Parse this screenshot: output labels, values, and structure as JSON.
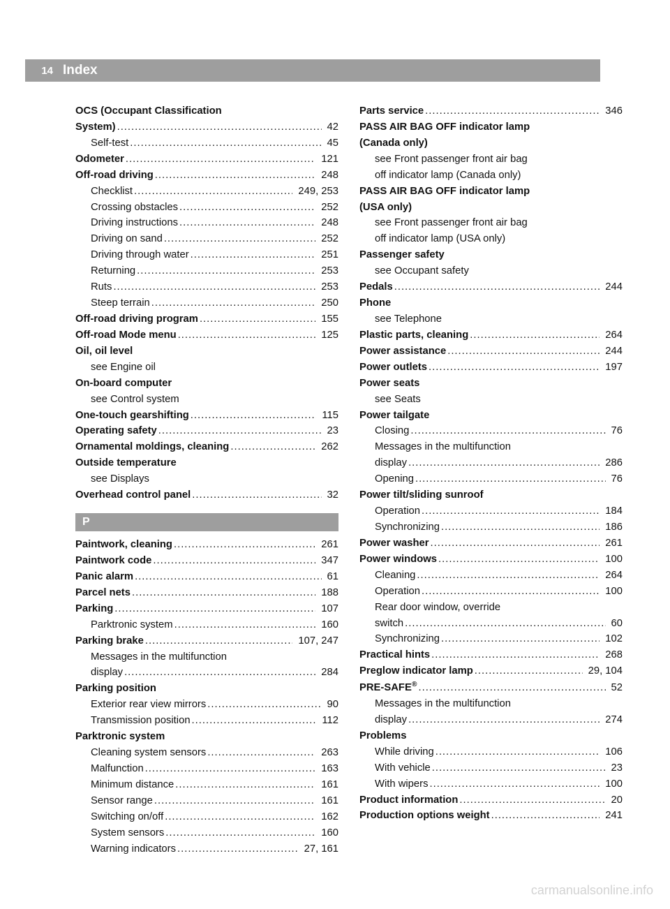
{
  "page_number": "14",
  "header_title": "Index",
  "watermark": "carmanualsonline.info",
  "section_letter": "P",
  "colors": {
    "header_bg": "#9e9e9e",
    "header_text": "#ffffff",
    "text": "#111111",
    "page_bg": "#ffffff",
    "watermark": "rgba(0,0,0,0.18)"
  },
  "left_col": [
    {
      "label": "OCS (Occupant Classification",
      "bold": true,
      "sub": false,
      "page": "",
      "noref": true
    },
    {
      "label": "System)",
      "bold": true,
      "sub": false,
      "page": "42"
    },
    {
      "label": "Self-test",
      "bold": false,
      "sub": true,
      "page": "45"
    },
    {
      "label": "Odometer",
      "bold": true,
      "sub": false,
      "page": "121"
    },
    {
      "label": "Off-road driving",
      "bold": true,
      "sub": false,
      "page": "248"
    },
    {
      "label": "Checklist",
      "bold": false,
      "sub": true,
      "page": "249, 253"
    },
    {
      "label": "Crossing obstacles",
      "bold": false,
      "sub": true,
      "page": "252"
    },
    {
      "label": "Driving instructions",
      "bold": false,
      "sub": true,
      "page": "248"
    },
    {
      "label": "Driving on sand",
      "bold": false,
      "sub": true,
      "page": "252"
    },
    {
      "label": "Driving through water",
      "bold": false,
      "sub": true,
      "page": "251"
    },
    {
      "label": "Returning",
      "bold": false,
      "sub": true,
      "page": "253"
    },
    {
      "label": "Ruts",
      "bold": false,
      "sub": true,
      "page": "253"
    },
    {
      "label": "Steep terrain",
      "bold": false,
      "sub": true,
      "page": "250"
    },
    {
      "label": "Off-road driving program",
      "bold": true,
      "sub": false,
      "page": "155"
    },
    {
      "label": "Off-road Mode menu",
      "bold": true,
      "sub": false,
      "page": "125"
    },
    {
      "label": "Oil, oil level",
      "bold": true,
      "sub": false,
      "page": "",
      "noref": true
    },
    {
      "label": "see Engine oil",
      "bold": false,
      "sub": true,
      "page": "",
      "noref": true,
      "see": true
    },
    {
      "label": "On-board computer",
      "bold": true,
      "sub": false,
      "page": "",
      "noref": true
    },
    {
      "label": "see Control system",
      "bold": false,
      "sub": true,
      "page": "",
      "noref": true,
      "see": true
    },
    {
      "label": "One-touch gearshifting",
      "bold": true,
      "sub": false,
      "page": "115"
    },
    {
      "label": "Operating safety",
      "bold": true,
      "sub": false,
      "page": "23"
    },
    {
      "label": "Ornamental moldings, cleaning",
      "bold": true,
      "sub": false,
      "page": "262"
    },
    {
      "label": "Outside temperature",
      "bold": true,
      "sub": false,
      "page": "",
      "noref": true
    },
    {
      "label": "see Displays",
      "bold": false,
      "sub": true,
      "page": "",
      "noref": true,
      "see": true
    },
    {
      "label": "Overhead control panel",
      "bold": true,
      "sub": false,
      "page": "32"
    },
    {
      "section": true
    },
    {
      "label": "Paintwork, cleaning",
      "bold": true,
      "sub": false,
      "page": "261"
    },
    {
      "label": "Paintwork code",
      "bold": true,
      "sub": false,
      "page": "347"
    },
    {
      "label": "Panic alarm",
      "bold": true,
      "sub": false,
      "page": "61"
    },
    {
      "label": "Parcel nets",
      "bold": true,
      "sub": false,
      "page": "188"
    },
    {
      "label": "Parking",
      "bold": true,
      "sub": false,
      "page": "107"
    },
    {
      "label": "Parktronic system",
      "bold": false,
      "sub": true,
      "page": "160"
    },
    {
      "label": "Parking brake",
      "bold": true,
      "sub": false,
      "page": "107, 247"
    },
    {
      "label": "Messages in the multifunction",
      "bold": false,
      "sub": true,
      "page": "",
      "noref": true
    },
    {
      "label": "display",
      "bold": false,
      "sub": true,
      "page": "284"
    },
    {
      "label": "Parking position",
      "bold": true,
      "sub": false,
      "page": "",
      "noref": true
    },
    {
      "label": "Exterior rear view mirrors",
      "bold": false,
      "sub": true,
      "page": "90"
    },
    {
      "label": "Transmission position",
      "bold": false,
      "sub": true,
      "page": "112"
    },
    {
      "label": "Parktronic system",
      "bold": true,
      "sub": false,
      "page": "",
      "noref": true
    },
    {
      "label": "Cleaning system sensors",
      "bold": false,
      "sub": true,
      "page": "263"
    },
    {
      "label": "Malfunction",
      "bold": false,
      "sub": true,
      "page": "163"
    },
    {
      "label": "Minimum distance",
      "bold": false,
      "sub": true,
      "page": "161"
    },
    {
      "label": "Sensor range",
      "bold": false,
      "sub": true,
      "page": "161"
    },
    {
      "label": "Switching on/off",
      "bold": false,
      "sub": true,
      "page": "162"
    },
    {
      "label": "System sensors",
      "bold": false,
      "sub": true,
      "page": "160"
    },
    {
      "label": "Warning indicators",
      "bold": false,
      "sub": true,
      "page": "27, 161"
    }
  ],
  "right_col": [
    {
      "label": "Parts service",
      "bold": true,
      "sub": false,
      "page": "346"
    },
    {
      "label": "PASS AIR BAG OFF indicator lamp",
      "bold": true,
      "sub": false,
      "page": "",
      "noref": true
    },
    {
      "label": "(Canada only)",
      "bold": true,
      "sub": false,
      "page": "",
      "noref": true
    },
    {
      "label": "see Front passenger front air bag",
      "bold": false,
      "sub": true,
      "page": "",
      "noref": true,
      "see": true
    },
    {
      "label": "off indicator lamp (Canada only)",
      "bold": false,
      "sub": true,
      "page": "",
      "noref": true,
      "see": true
    },
    {
      "label": "PASS AIR BAG OFF indicator lamp",
      "bold": true,
      "sub": false,
      "page": "",
      "noref": true
    },
    {
      "label": "(USA only)",
      "bold": true,
      "sub": false,
      "page": "",
      "noref": true
    },
    {
      "label": "see Front passenger front air bag",
      "bold": false,
      "sub": true,
      "page": "",
      "noref": true,
      "see": true
    },
    {
      "label": "off indicator lamp (USA only)",
      "bold": false,
      "sub": true,
      "page": "",
      "noref": true,
      "see": true
    },
    {
      "label": "Passenger safety",
      "bold": true,
      "sub": false,
      "page": "",
      "noref": true
    },
    {
      "label": "see Occupant safety",
      "bold": false,
      "sub": true,
      "page": "",
      "noref": true,
      "see": true
    },
    {
      "label": "Pedals",
      "bold": true,
      "sub": false,
      "page": "244"
    },
    {
      "label": "Phone",
      "bold": true,
      "sub": false,
      "page": "",
      "noref": true
    },
    {
      "label": "see Telephone",
      "bold": false,
      "sub": true,
      "page": "",
      "noref": true,
      "see": true
    },
    {
      "label": "Plastic parts, cleaning",
      "bold": true,
      "sub": false,
      "page": "264"
    },
    {
      "label": "Power assistance",
      "bold": true,
      "sub": false,
      "page": "244"
    },
    {
      "label": "Power outlets",
      "bold": true,
      "sub": false,
      "page": "197"
    },
    {
      "label": "Power seats",
      "bold": true,
      "sub": false,
      "page": "",
      "noref": true
    },
    {
      "label": "see Seats",
      "bold": false,
      "sub": true,
      "page": "",
      "noref": true,
      "see": true
    },
    {
      "label": "Power tailgate",
      "bold": true,
      "sub": false,
      "page": "",
      "noref": true
    },
    {
      "label": "Closing",
      "bold": false,
      "sub": true,
      "page": "76"
    },
    {
      "label": "Messages in the multifunction",
      "bold": false,
      "sub": true,
      "page": "",
      "noref": true
    },
    {
      "label": "display",
      "bold": false,
      "sub": true,
      "page": "286"
    },
    {
      "label": "Opening",
      "bold": false,
      "sub": true,
      "page": "76"
    },
    {
      "label": "Power tilt/sliding sunroof",
      "bold": true,
      "sub": false,
      "page": "",
      "noref": true
    },
    {
      "label": "Operation",
      "bold": false,
      "sub": true,
      "page": "184"
    },
    {
      "label": "Synchronizing",
      "bold": false,
      "sub": true,
      "page": "186"
    },
    {
      "label": "Power washer",
      "bold": true,
      "sub": false,
      "page": "261"
    },
    {
      "label": "Power windows",
      "bold": true,
      "sub": false,
      "page": "100"
    },
    {
      "label": "Cleaning",
      "bold": false,
      "sub": true,
      "page": "264"
    },
    {
      "label": "Operation",
      "bold": false,
      "sub": true,
      "page": "100"
    },
    {
      "label": "Rear door window, override",
      "bold": false,
      "sub": true,
      "page": "",
      "noref": true
    },
    {
      "label": "switch",
      "bold": false,
      "sub": true,
      "page": "60"
    },
    {
      "label": "Synchronizing",
      "bold": false,
      "sub": true,
      "page": "102"
    },
    {
      "label": "Practical hints",
      "bold": true,
      "sub": false,
      "page": "268"
    },
    {
      "label": "Preglow indicator lamp",
      "bold": true,
      "sub": false,
      "page": "29, 104"
    },
    {
      "label": "PRE-SAFE®",
      "bold": true,
      "sub": false,
      "page": "52",
      "html": "PRE-SAFE<sup>®</sup>"
    },
    {
      "label": "Messages in the multifunction",
      "bold": false,
      "sub": true,
      "page": "",
      "noref": true
    },
    {
      "label": "display",
      "bold": false,
      "sub": true,
      "page": "274"
    },
    {
      "label": "Problems",
      "bold": true,
      "sub": false,
      "page": "",
      "noref": true
    },
    {
      "label": "While driving",
      "bold": false,
      "sub": true,
      "page": "106"
    },
    {
      "label": "With vehicle",
      "bold": false,
      "sub": true,
      "page": "23"
    },
    {
      "label": "With wipers",
      "bold": false,
      "sub": true,
      "page": "100"
    },
    {
      "label": "Product information",
      "bold": true,
      "sub": false,
      "page": "20"
    },
    {
      "label": "Production options weight",
      "bold": true,
      "sub": false,
      "page": "241"
    }
  ]
}
